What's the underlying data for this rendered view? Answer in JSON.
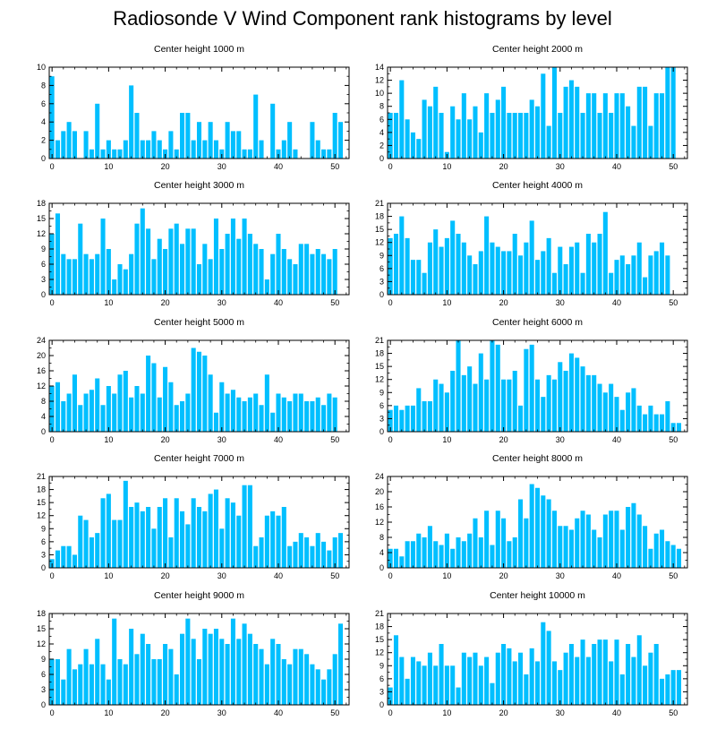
{
  "page": {
    "title": "Radiosonde V Wind Component rank histograms by level"
  },
  "style": {
    "bar_color": "#00bfff",
    "axis_color": "#000000",
    "background": "#ffffff"
  },
  "chart_data": [
    {
      "type": "bar",
      "title": "Center height 1000 m",
      "xlim": [
        -0.5,
        52.5
      ],
      "ylim": [
        0,
        10
      ],
      "xticks": [
        0,
        10,
        20,
        30,
        40,
        50
      ],
      "yticks": [
        0,
        2,
        4,
        6,
        8,
        10
      ],
      "values": [
        9,
        2,
        3,
        4,
        3,
        0,
        3,
        1,
        6,
        1,
        2,
        1,
        1,
        2,
        8,
        5,
        2,
        2,
        3,
        2,
        1,
        3,
        1,
        5,
        5,
        2,
        4,
        2,
        4,
        2,
        1,
        4,
        3,
        3,
        1,
        1,
        7,
        2,
        0,
        6,
        1,
        2,
        4,
        1,
        0,
        0,
        4,
        2,
        1,
        1,
        5,
        4
      ]
    },
    {
      "type": "bar",
      "title": "Center height 2000 m",
      "xlim": [
        -0.5,
        52.5
      ],
      "ylim": [
        0,
        14
      ],
      "xticks": [
        0,
        10,
        20,
        30,
        40,
        50
      ],
      "yticks": [
        0,
        2,
        4,
        6,
        8,
        10,
        12,
        14
      ],
      "values": [
        7,
        7,
        12,
        6,
        4,
        3,
        9,
        8,
        11,
        7,
        1,
        8,
        6,
        10,
        6,
        8,
        4,
        10,
        7,
        9,
        11,
        7,
        7,
        7,
        7,
        9,
        8,
        13,
        5,
        14,
        7,
        11,
        12,
        11,
        7,
        10,
        10,
        7,
        10,
        7,
        10,
        10,
        8,
        5,
        11,
        11,
        5,
        10,
        10,
        14,
        14
      ]
    },
    {
      "type": "bar",
      "title": "Center height 3000 m",
      "xlim": [
        -0.5,
        52.5
      ],
      "ylim": [
        0,
        18
      ],
      "xticks": [
        0,
        10,
        20,
        30,
        40,
        50
      ],
      "yticks": [
        0,
        3,
        6,
        9,
        12,
        15,
        18
      ],
      "values": [
        12,
        16,
        8,
        7,
        7,
        14,
        8,
        7,
        8,
        15,
        9,
        3,
        6,
        5,
        8,
        14,
        17,
        13,
        7,
        11,
        9,
        13,
        14,
        10,
        13,
        13,
        6,
        10,
        7,
        15,
        9,
        12,
        15,
        11,
        15,
        12,
        10,
        9,
        3,
        8,
        12,
        9,
        7,
        6,
        10,
        10,
        8,
        9,
        8,
        7,
        9
      ]
    },
    {
      "type": "bar",
      "title": "Center height 4000 m",
      "xlim": [
        -0.5,
        52.5
      ],
      "ylim": [
        0,
        21
      ],
      "xticks": [
        0,
        10,
        20,
        30,
        40,
        50
      ],
      "yticks": [
        0,
        3,
        6,
        9,
        12,
        15,
        18,
        21
      ],
      "values": [
        13,
        14,
        18,
        13,
        8,
        8,
        5,
        12,
        15,
        11,
        13,
        17,
        14,
        12,
        9,
        7,
        10,
        18,
        12,
        11,
        10,
        10,
        14,
        9,
        12,
        17,
        8,
        10,
        13,
        5,
        11,
        7,
        11,
        12,
        5,
        14,
        12,
        14,
        19,
        5,
        8,
        9,
        7,
        9,
        12,
        4,
        9,
        10,
        12,
        9
      ]
    },
    {
      "type": "bar",
      "title": "Center height 5000 m",
      "xlim": [
        -0.5,
        52.5
      ],
      "ylim": [
        0,
        24
      ],
      "xticks": [
        0,
        10,
        20,
        30,
        40,
        50
      ],
      "yticks": [
        0,
        4,
        8,
        12,
        16,
        20,
        24
      ],
      "values": [
        12,
        13,
        8,
        10,
        15,
        7,
        10,
        11,
        14,
        7,
        12,
        10,
        15,
        16,
        9,
        12,
        10,
        20,
        18,
        9,
        17,
        13,
        7,
        8,
        10,
        22,
        21,
        20,
        15,
        5,
        13,
        10,
        11,
        9,
        8,
        9,
        10,
        7,
        15,
        5,
        10,
        9,
        8,
        10,
        10,
        8,
        8,
        9,
        7,
        10,
        9
      ]
    },
    {
      "type": "bar",
      "title": "Center height 6000 m",
      "xlim": [
        -0.5,
        52.5
      ],
      "ylim": [
        0,
        21
      ],
      "xticks": [
        0,
        10,
        20,
        30,
        40,
        50
      ],
      "yticks": [
        0,
        3,
        6,
        9,
        12,
        15,
        18,
        21
      ],
      "values": [
        5,
        6,
        5,
        6,
        6,
        10,
        7,
        7,
        12,
        11,
        9,
        14,
        21,
        13,
        15,
        11,
        18,
        12,
        21,
        20,
        12,
        12,
        14,
        6,
        19,
        20,
        12,
        8,
        13,
        12,
        16,
        14,
        18,
        17,
        15,
        13,
        13,
        11,
        9,
        11,
        8,
        5,
        9,
        10,
        6,
        4,
        6,
        4,
        4,
        7,
        2,
        2
      ]
    },
    {
      "type": "bar",
      "title": "Center height 7000 m",
      "xlim": [
        -0.5,
        52.5
      ],
      "ylim": [
        0,
        21
      ],
      "xticks": [
        0,
        10,
        20,
        30,
        40,
        50
      ],
      "yticks": [
        0,
        3,
        6,
        9,
        12,
        15,
        18,
        21
      ],
      "values": [
        2,
        4,
        5,
        5,
        3,
        12,
        11,
        7,
        8,
        16,
        17,
        11,
        11,
        20,
        14,
        15,
        13,
        14,
        9,
        14,
        16,
        7,
        16,
        13,
        10,
        16,
        14,
        13,
        17,
        18,
        9,
        16,
        15,
        12,
        19,
        19,
        5,
        7,
        12,
        13,
        12,
        14,
        5,
        6,
        8,
        7,
        5,
        8,
        6,
        4,
        7,
        8
      ]
    },
    {
      "type": "bar",
      "title": "Center height 8000 m",
      "xlim": [
        -0.5,
        52.5
      ],
      "ylim": [
        0,
        24
      ],
      "xticks": [
        0,
        10,
        20,
        30,
        40,
        50
      ],
      "yticks": [
        0,
        4,
        8,
        12,
        16,
        20,
        24
      ],
      "values": [
        5,
        5,
        3,
        7,
        7,
        9,
        8,
        11,
        7,
        6,
        9,
        5,
        8,
        7,
        9,
        13,
        8,
        15,
        6,
        15,
        13,
        7,
        8,
        18,
        13,
        22,
        21,
        19,
        18,
        15,
        11,
        11,
        10,
        13,
        15,
        14,
        10,
        8,
        14,
        15,
        15,
        10,
        16,
        17,
        14,
        11,
        5,
        9,
        10,
        7,
        6,
        5
      ]
    },
    {
      "type": "bar",
      "title": "Center height 9000 m",
      "xlim": [
        -0.5,
        52.5
      ],
      "ylim": [
        0,
        18
      ],
      "xticks": [
        0,
        10,
        20,
        30,
        40,
        50
      ],
      "yticks": [
        0,
        3,
        6,
        9,
        12,
        15,
        18
      ],
      "values": [
        9,
        9,
        5,
        11,
        7,
        8,
        11,
        8,
        13,
        8,
        5,
        17,
        9,
        8,
        15,
        10,
        14,
        12,
        9,
        9,
        12,
        11,
        6,
        14,
        17,
        13,
        9,
        15,
        14,
        15,
        13,
        12,
        17,
        13,
        16,
        14,
        12,
        11,
        8,
        13,
        12,
        9,
        8,
        11,
        11,
        10,
        8,
        7,
        5,
        7,
        10,
        16
      ]
    },
    {
      "type": "bar",
      "title": "Center height 10000 m",
      "xlim": [
        -0.5,
        52.5
      ],
      "ylim": [
        0,
        21
      ],
      "xticks": [
        0,
        10,
        20,
        30,
        40,
        50
      ],
      "yticks": [
        0,
        3,
        6,
        9,
        12,
        15,
        18,
        21
      ],
      "values": [
        4,
        16,
        11,
        6,
        11,
        10,
        9,
        12,
        9,
        14,
        9,
        9,
        4,
        12,
        11,
        12,
        9,
        11,
        5,
        12,
        14,
        13,
        10,
        12,
        7,
        13,
        10,
        19,
        17,
        10,
        8,
        12,
        14,
        11,
        15,
        11,
        14,
        15,
        15,
        10,
        15,
        7,
        14,
        11,
        16,
        9,
        12,
        14,
        6,
        7,
        8,
        8
      ]
    }
  ]
}
